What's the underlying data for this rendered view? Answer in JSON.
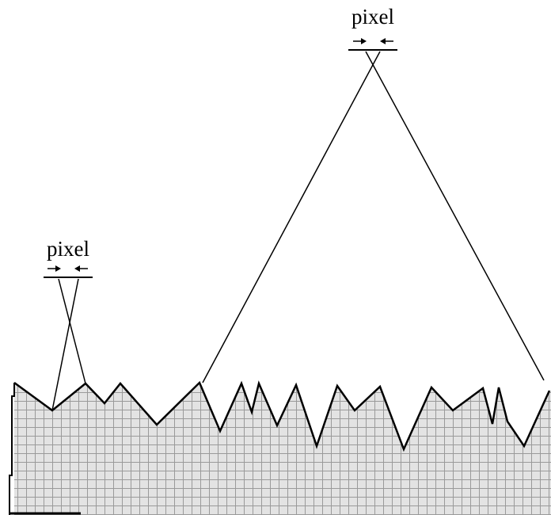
{
  "labels": {
    "small_pixel": "pixel",
    "large_pixel": "pixel"
  },
  "colors": {
    "ink": "#000000",
    "surface_fill": "#e3e3e3",
    "grid_line": "#9a9a9a",
    "background": "#ffffff"
  }
}
